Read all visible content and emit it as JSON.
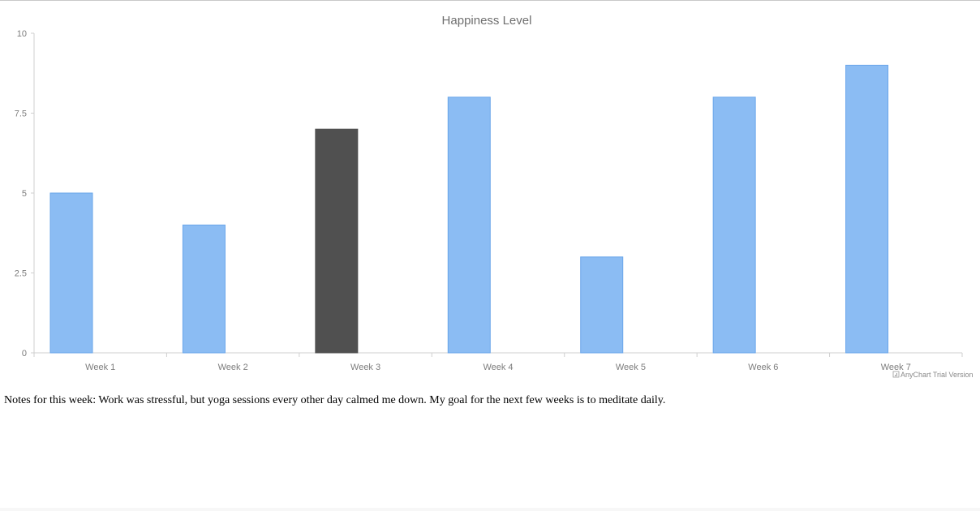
{
  "chart_data": {
    "type": "bar",
    "title": "Happiness Level",
    "categories": [
      "Week 1",
      "Week 2",
      "Week 3",
      "Week 4",
      "Week 5",
      "Week 6",
      "Week 7"
    ],
    "values": [
      5,
      4,
      7,
      8,
      3,
      8,
      9
    ],
    "highlight_index": 2,
    "ylim": [
      0,
      10
    ],
    "yticks": [
      0,
      2.5,
      5,
      7.5,
      10
    ],
    "ytick_labels": [
      "0",
      "2.5",
      "5",
      "7.5",
      "10"
    ],
    "colors": {
      "bar": "#8bbcf3",
      "bar_stroke": "#6aa6ea",
      "highlight": "#505050",
      "axis": "#cfcfcf"
    },
    "grid": false
  },
  "credits_text": "AnyChart Trial Version",
  "notes": "Notes for this week: Work was stressful, but yoga sessions every other day calmed me down. My goal for the next few weeks is to meditate daily."
}
